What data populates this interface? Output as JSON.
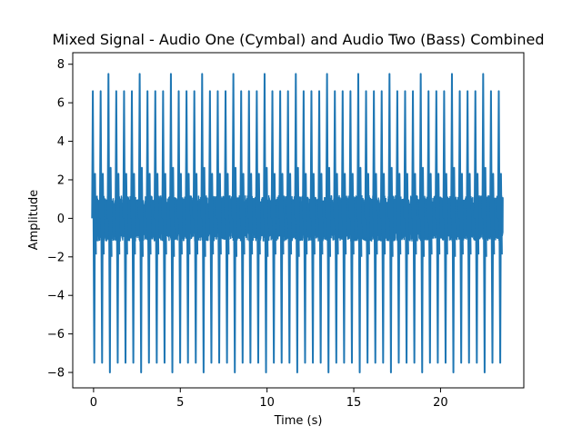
{
  "chart_data": {
    "type": "line",
    "title": "Mixed Signal - Audio One (Cymbal) and Audio Two (Bass) Combined",
    "xlabel": "Time (s)",
    "ylabel": "Amplitude",
    "xlim": [
      -1.2,
      24.8
    ],
    "ylim": [
      -8.8,
      8.6
    ],
    "xticks": [
      0,
      5,
      10,
      15,
      20
    ],
    "yticks": [
      -8,
      -6,
      -4,
      -2,
      0,
      2,
      4,
      6,
      8
    ],
    "grid": false,
    "color": "#1f77b4",
    "series": [
      {
        "x": [
          0.0,
          23.6
        ],
        "peak_times": [
          0.0,
          0.45,
          0.9,
          1.35,
          1.8,
          2.25,
          2.7,
          3.15,
          3.6,
          4.05,
          4.5,
          4.95,
          5.4,
          5.85,
          6.3,
          6.75,
          7.2,
          7.65,
          8.1,
          8.55,
          9.0,
          9.45,
          9.9,
          10.35,
          10.8,
          11.25,
          11.7,
          12.15,
          12.6,
          13.05,
          13.5,
          13.95,
          14.4,
          14.85,
          15.3,
          15.75,
          16.2,
          16.65,
          17.1,
          17.55,
          18.0,
          18.45,
          18.9,
          19.35,
          19.8,
          20.25,
          20.7,
          21.15,
          21.6,
          22.05,
          22.5,
          22.95,
          23.4
        ],
        "peak_max": [
          6.6,
          6.6,
          7.5,
          6.6,
          6.6,
          6.6,
          7.5,
          6.6,
          6.6,
          6.6,
          7.5,
          6.6,
          6.6,
          6.6,
          7.5,
          6.6,
          6.6,
          6.6,
          7.5,
          6.6,
          6.6,
          6.6,
          7.5,
          6.6,
          6.6,
          6.6,
          7.5,
          6.6,
          6.6,
          6.6,
          7.5,
          6.6,
          6.6,
          6.6,
          7.5,
          6.6,
          6.6,
          6.6,
          7.5,
          6.6,
          6.6,
          6.6,
          7.5,
          6.6,
          6.6,
          6.6,
          7.5,
          6.6,
          6.6,
          6.6,
          7.5,
          6.6,
          6.6
        ],
        "peak_min": [
          -7.5,
          -7.5,
          -8.0,
          -7.5,
          -7.5,
          -7.5,
          -8.0,
          -7.5,
          -7.5,
          -7.5,
          -8.0,
          -7.5,
          -7.5,
          -7.5,
          -8.0,
          -7.5,
          -7.5,
          -7.5,
          -8.0,
          -7.5,
          -7.5,
          -7.5,
          -8.0,
          -7.5,
          -7.5,
          -7.5,
          -8.0,
          -7.5,
          -7.5,
          -7.5,
          -8.0,
          -7.5,
          -7.5,
          -7.5,
          -8.0,
          -7.5,
          -7.5,
          -7.5,
          -8.0,
          -7.5,
          -7.5,
          -7.5,
          -8.0,
          -7.5,
          -7.5,
          -7.5,
          -8.0,
          -7.5,
          -7.5,
          -7.5,
          -8.0,
          -7.5,
          -7.5
        ],
        "noise_band": [
          -1.2,
          1.2
        ]
      }
    ]
  }
}
